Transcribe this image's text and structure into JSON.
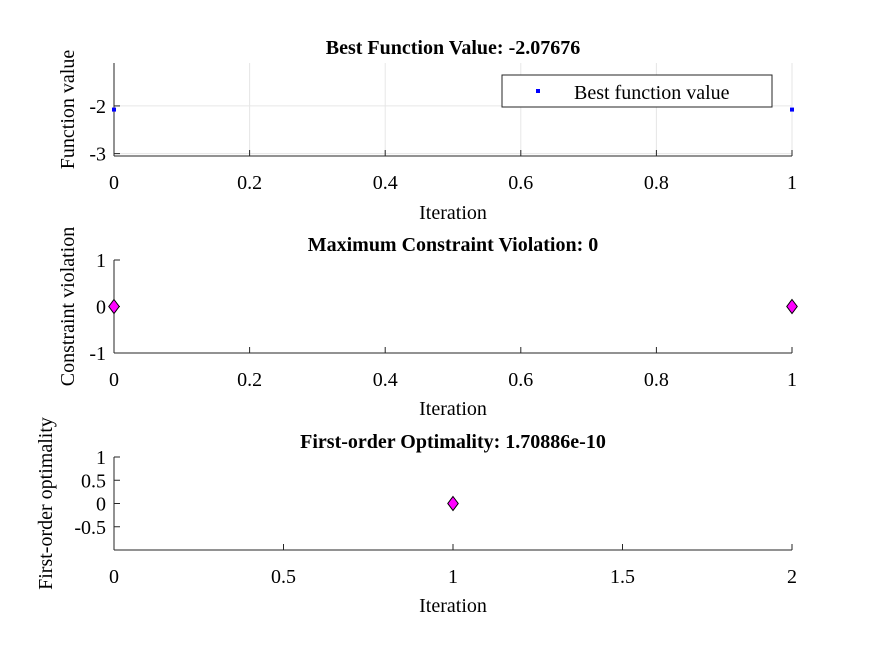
{
  "chart_data": [
    {
      "type": "scatter",
      "title": "Best Function Value: -2.07676",
      "xlabel": "Iteration",
      "ylabel": "Function value",
      "xlim": [
        0,
        1
      ],
      "ylim": [
        -3.05,
        -1.1
      ],
      "xticks": [
        "0",
        "0.2",
        "0.4",
        "0.6",
        "0.8",
        "1"
      ],
      "yticks": [
        "-2",
        "-3"
      ],
      "grid": true,
      "legend": {
        "label": "Best function value",
        "position": "top-right"
      },
      "marker_color": "#0000ff",
      "series": [
        {
          "name": "Best function value",
          "x": [
            0,
            1
          ],
          "y": [
            -2.07676,
            -2.07676
          ]
        }
      ]
    },
    {
      "type": "scatter",
      "title": "Maximum Constraint Violation: 0",
      "xlabel": "Iteration",
      "ylabel": "Constraint violation",
      "xlim": [
        0,
        1
      ],
      "ylim": [
        -1,
        1
      ],
      "xticks": [
        "0",
        "0.2",
        "0.4",
        "0.6",
        "0.8",
        "1"
      ],
      "yticks": [
        "1",
        "0",
        "-1"
      ],
      "grid": false,
      "marker_color": "#ff00ff",
      "series": [
        {
          "x": [
            0,
            1
          ],
          "y": [
            0,
            0
          ]
        }
      ]
    },
    {
      "type": "scatter",
      "title": "First-order Optimality: 1.70886e-10",
      "xlabel": "Iteration",
      "ylabel": "First-order optimality",
      "xlim": [
        0,
        2
      ],
      "ylim": [
        -1,
        1
      ],
      "xticks": [
        "0",
        "0.5",
        "1",
        "1.5",
        "2"
      ],
      "yticks": [
        "1",
        "0.5",
        "0",
        "-0.5"
      ],
      "grid": false,
      "marker_color": "#ff00ff",
      "series": [
        {
          "x": [
            1
          ],
          "y": [
            1.70886e-10
          ]
        }
      ]
    }
  ]
}
